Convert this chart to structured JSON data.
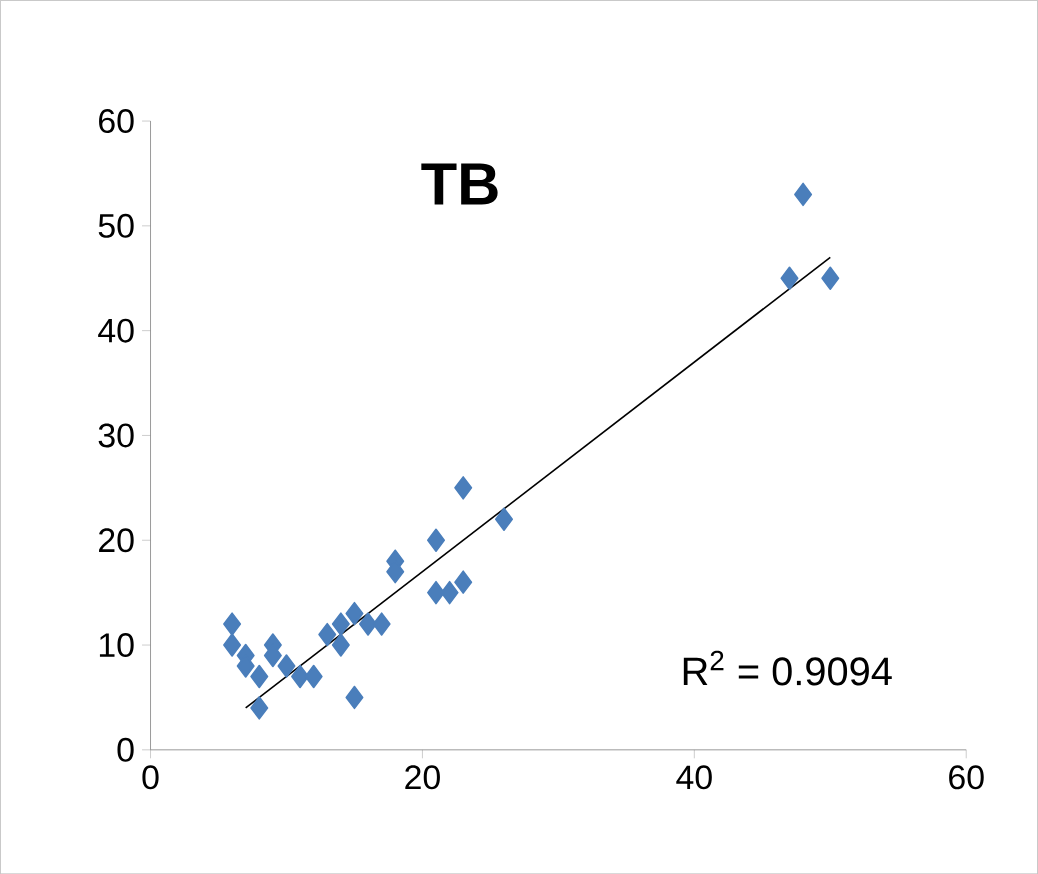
{
  "chart_data": {
    "type": "scatter",
    "title": "TB",
    "marker": "diamond",
    "grid": false,
    "xlim": [
      0,
      60
    ],
    "xticks": [
      0,
      20,
      40,
      60
    ],
    "ylim": [
      0,
      60
    ],
    "yticks": [
      0,
      10,
      20,
      30,
      40,
      50,
      60
    ],
    "annotations": [
      "R$^{2}$ = 0.9094"
    ],
    "series": [
      {
        "color": "#4a7ebb",
        "x": [
          6,
          6,
          7,
          7,
          8,
          8,
          9,
          9,
          10,
          11,
          12,
          13,
          14,
          14,
          15,
          15,
          16,
          17,
          18,
          18,
          21,
          21,
          22,
          23,
          23,
          26,
          47,
          48,
          50
        ],
        "values": [
          12,
          10,
          9,
          8,
          4,
          7,
          10,
          9,
          8,
          7,
          7,
          11,
          10,
          12,
          13,
          5,
          12,
          12,
          18,
          17,
          20,
          15,
          15,
          16,
          25,
          22,
          45,
          53,
          45
        ]
      },
      {
        "type": "line",
        "color": "#000000",
        "marker": "none",
        "x": [
          7,
          50
        ],
        "values": [
          4,
          47
        ]
      }
    ]
  }
}
